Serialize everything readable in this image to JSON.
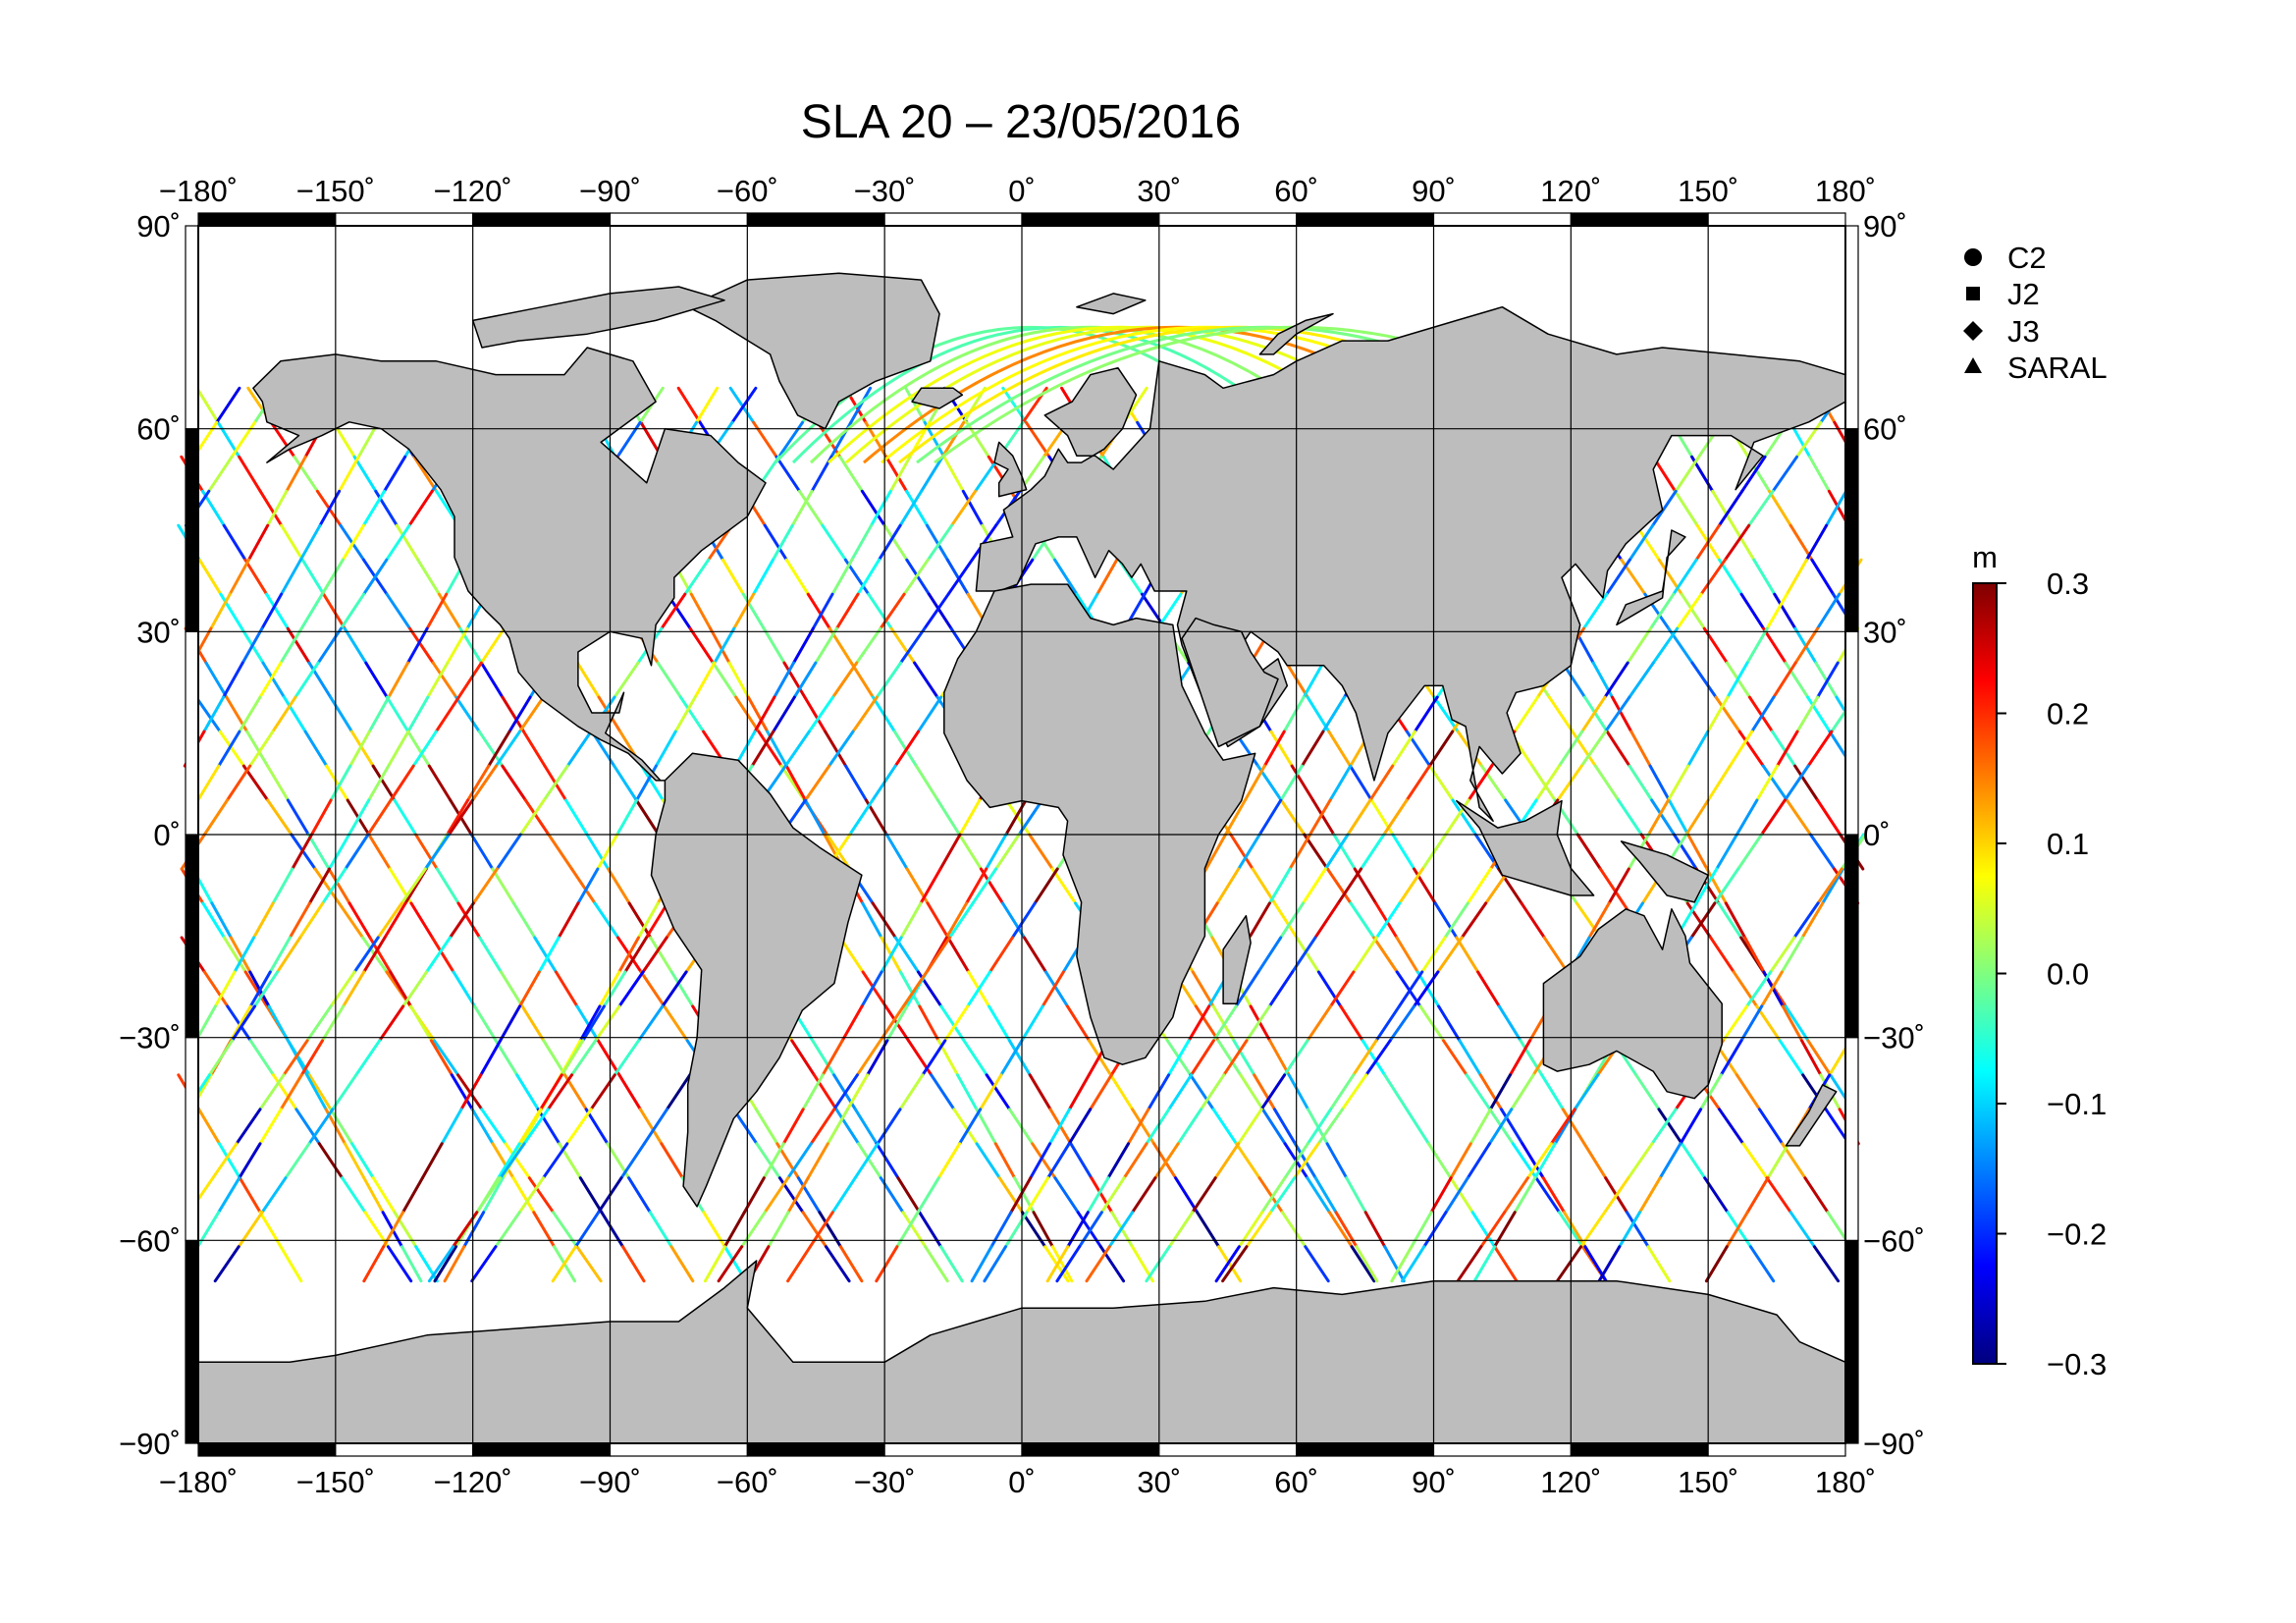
{
  "title": "SLA 20 – 23/05/2016",
  "map": {
    "projection": "equirectangular",
    "lon_range": [
      -180,
      180
    ],
    "lat_range": [
      -90,
      90
    ],
    "grid_lon": [
      -180,
      -150,
      -120,
      -90,
      -60,
      -30,
      0,
      30,
      60,
      90,
      120,
      150,
      180
    ],
    "grid_lat": [
      -90,
      -60,
      -30,
      0,
      30,
      60,
      90
    ],
    "lon_labels": [
      "−180˚",
      "−150˚",
      "−120˚",
      "−90˚",
      "−60˚",
      "−30˚",
      "0˚",
      "30˚",
      "60˚",
      "90˚",
      "120˚",
      "150˚",
      "180˚"
    ],
    "lat_labels": [
      "−90˚",
      "−60˚",
      "−30˚",
      "0˚",
      "30˚",
      "60˚",
      "90˚"
    ],
    "land_color": "#bdbdbd",
    "ocean_color": "#ffffff",
    "track_lat_limits": [
      -66,
      66
    ]
  },
  "legend": {
    "missions": [
      {
        "label": "C2",
        "symbol": "circle"
      },
      {
        "label": "J2",
        "symbol": "square"
      },
      {
        "label": "J3",
        "symbol": "diamond"
      },
      {
        "label": "SARAL",
        "symbol": "triangle"
      }
    ]
  },
  "colorbar": {
    "unit": "m",
    "min": -0.3,
    "max": 0.3,
    "tick_labels": [
      "0.3",
      "0.2",
      "0.1",
      "0.0",
      "−0.1",
      "−0.2",
      "−0.3"
    ],
    "colormap": [
      "#00007f",
      "#0000ff",
      "#007fff",
      "#00ffff",
      "#7fff7f",
      "#ffff00",
      "#ff7f00",
      "#ff0000",
      "#7f0000"
    ]
  }
}
